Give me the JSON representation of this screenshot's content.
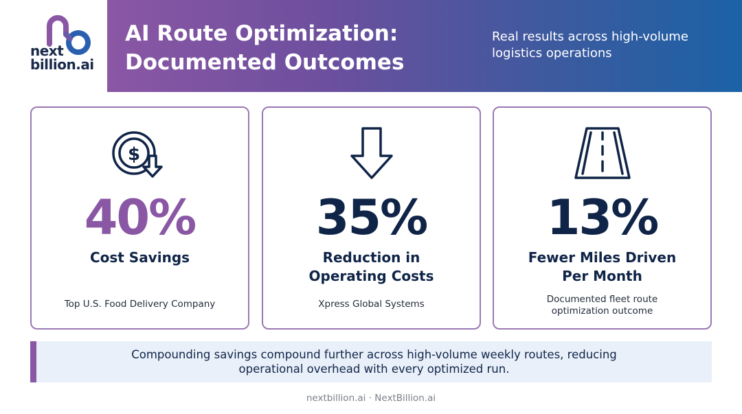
{
  "brand": {
    "logo_line1": "next",
    "logo_line2": "billion.ai",
    "colors": {
      "purple": "#8a57a4",
      "navy": "#0f2447",
      "blue": "#1b62a6"
    }
  },
  "header": {
    "title": "AI Route Optimization: Documented Outcomes",
    "subtitle": "Real results across high-volume logistics operations"
  },
  "cards": [
    {
      "icon": "dollar-coin-down-arrow-icon",
      "stat": "40%",
      "stat_color": "#8a57a4",
      "label": "Cost Savings",
      "source": "Top U.S. Food Delivery Company"
    },
    {
      "icon": "down-arrow-icon",
      "stat": "35%",
      "stat_color": "#0f2447",
      "label": "Reduction in Operating Costs",
      "source": "Xpress Global Systems"
    },
    {
      "icon": "road-icon",
      "stat": "13%",
      "stat_color": "#0f2447",
      "label": "Fewer Miles Driven Per Month",
      "source": "Documented fleet route optimization outcome"
    }
  ],
  "note": "Compounding savings compound further across high-volume weekly routes, reducing operational overhead with every optimized run.",
  "footer": "nextbillion.ai · NextBillion.ai"
}
